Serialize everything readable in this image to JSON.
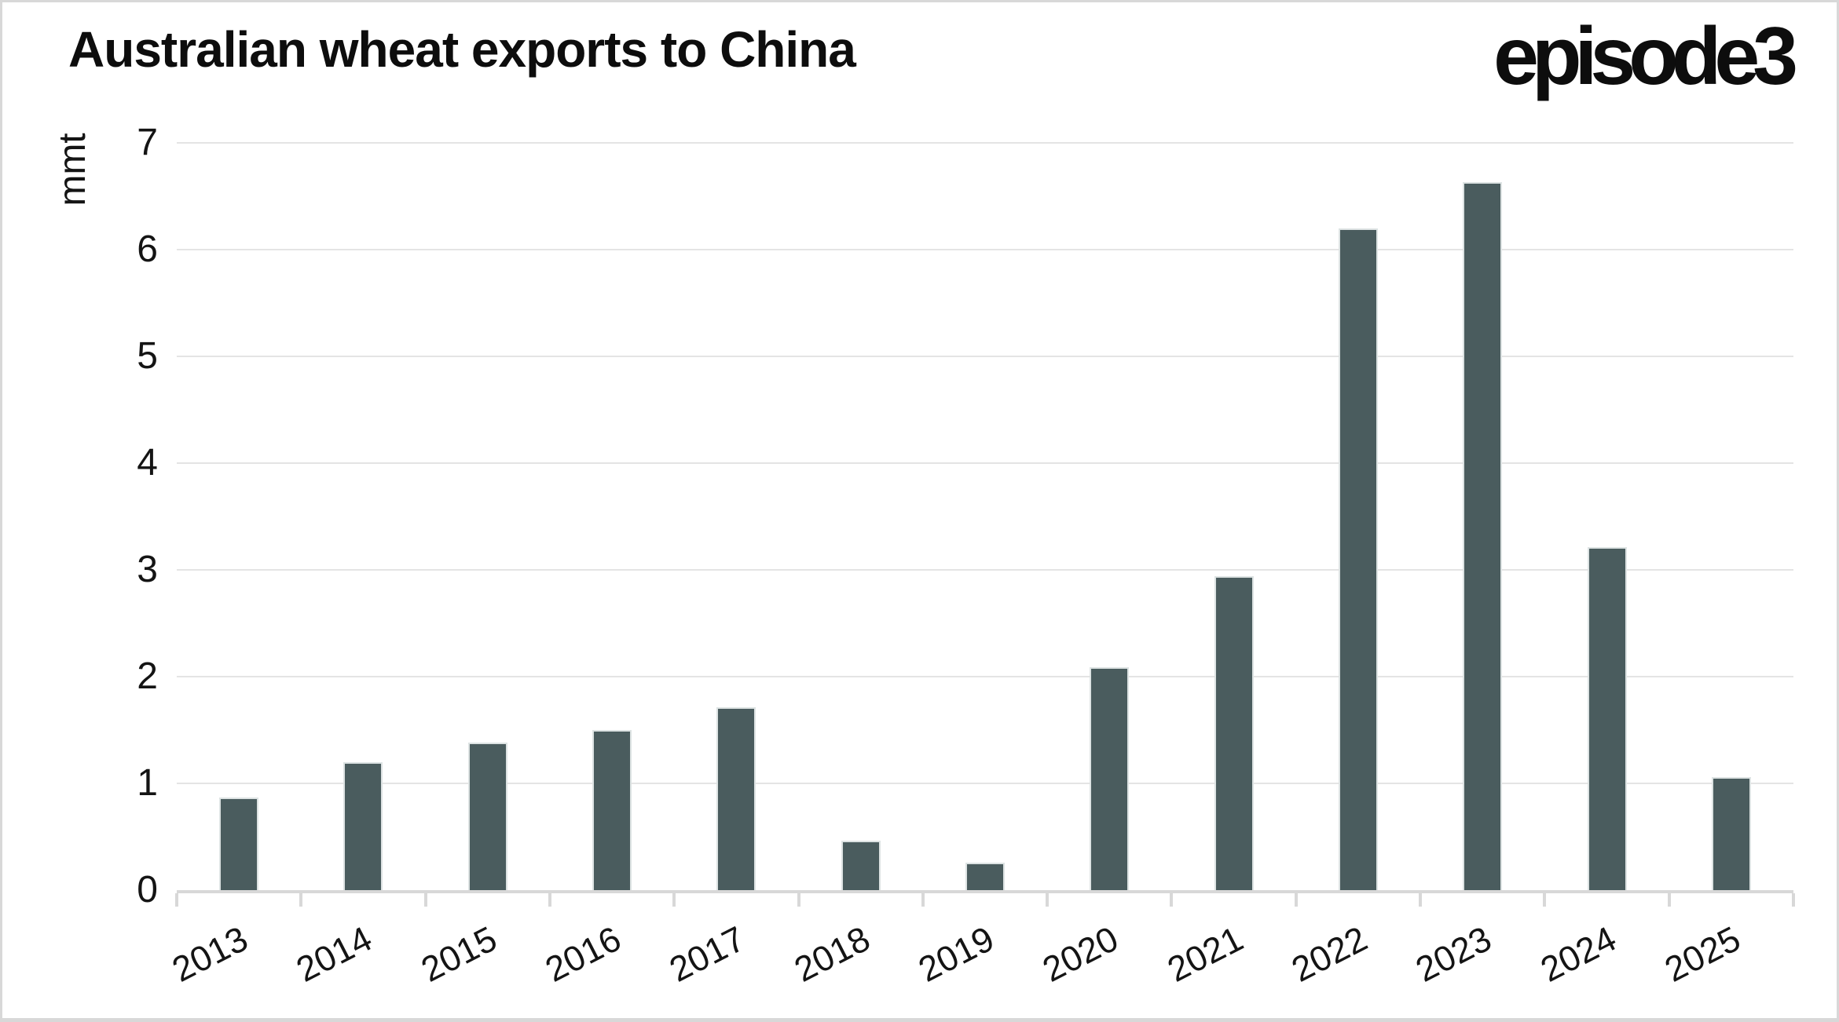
{
  "header": {
    "title": "Australian wheat exports to China",
    "logo": "episode3"
  },
  "chart_data": {
    "type": "bar",
    "title": "Australian wheat exports to China",
    "xlabel": "",
    "ylabel": "mmt",
    "ylim": [
      0,
      7
    ],
    "ytick_labels": [
      "0",
      "1",
      "2",
      "3",
      "4",
      "5",
      "6",
      "7"
    ],
    "grid": true,
    "legend": "none",
    "categories": [
      "2013",
      "2014",
      "2015",
      "2016",
      "2017",
      "2018",
      "2019",
      "2020",
      "2021",
      "2022",
      "2023",
      "2024",
      "2025"
    ],
    "values": [
      0.87,
      1.2,
      1.38,
      1.5,
      1.71,
      0.46,
      0.26,
      2.09,
      2.94,
      6.2,
      6.63,
      3.21,
      1.06
    ],
    "bar_color": "#4a5c5e"
  },
  "colors": {
    "bar": "#4a5c5e",
    "gridline": "#e4e4e4",
    "axis": "#d8d8d8",
    "text": "#141414",
    "frame_border": "#d8d8d8",
    "background": "#ffffff"
  }
}
